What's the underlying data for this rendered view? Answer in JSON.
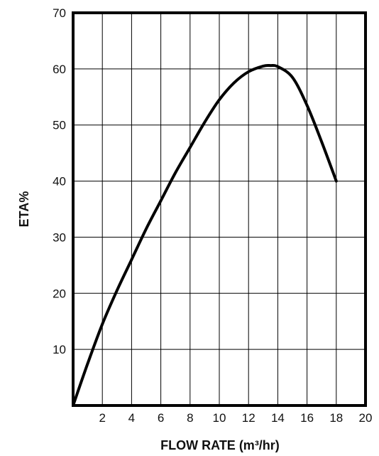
{
  "chart_data": {
    "type": "line",
    "title": "",
    "xlabel": "FLOW RATE (m³/hr)",
    "ylabel": "ETA%",
    "xlim": [
      0,
      20
    ],
    "ylim": [
      0,
      70
    ],
    "x_ticks": [
      "2",
      "4",
      "6",
      "8",
      "10",
      "12",
      "14",
      "16",
      "18",
      "20"
    ],
    "y_ticks": [
      "10",
      "20",
      "30",
      "40",
      "50",
      "60",
      "70"
    ],
    "grid": true,
    "legend": "none",
    "line_color": "#000000",
    "series": [
      {
        "x": [
          0,
          1,
          2,
          3,
          4,
          5,
          6,
          7,
          8,
          9,
          10,
          11,
          12,
          13,
          13.5,
          14,
          15,
          16,
          17,
          18
        ],
        "y": [
          0,
          7.5,
          14.5,
          20.5,
          26,
          31.5,
          36.5,
          41.5,
          46,
          50.5,
          54.5,
          57.5,
          59.5,
          60.5,
          60.6,
          60.4,
          58.5,
          53.5,
          47,
          40
        ]
      }
    ]
  }
}
